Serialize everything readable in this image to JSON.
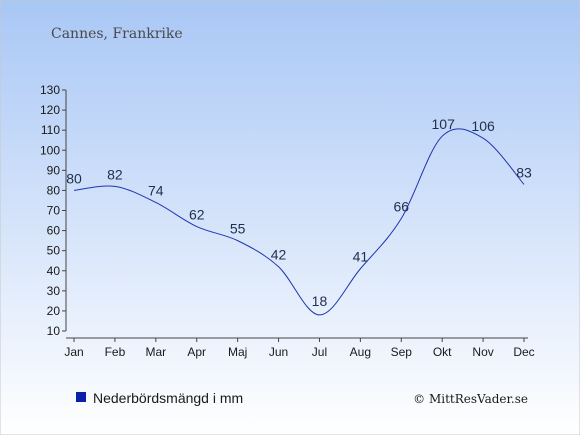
{
  "colors": {
    "background_top": "#a9c7f5",
    "background_bottom": "#ffffff",
    "line": "#1f35b0",
    "legend_swatch": "#0a1faa",
    "axis": "#444444"
  },
  "chart_data": {
    "type": "line",
    "subtitle": "Cannes, Frankrike",
    "categories": [
      "Jan",
      "Feb",
      "Mar",
      "Apr",
      "Maj",
      "Jun",
      "Jul",
      "Aug",
      "Sep",
      "Okt",
      "Nov",
      "Dec"
    ],
    "series": [
      {
        "name": "Nederbördsmängd i mm",
        "values": [
          80,
          82,
          74,
          62,
          55,
          42,
          18,
          41,
          66,
          107,
          106,
          83
        ]
      }
    ],
    "y_ticks": [
      "10",
      "20",
      "30",
      "40",
      "50",
      "60",
      "70",
      "80",
      "90",
      "100",
      "110",
      "120",
      "130"
    ],
    "ylim": [
      10,
      130
    ],
    "grid": false,
    "legend_position": "bottom-left",
    "credit": "© MittResVader.se"
  }
}
